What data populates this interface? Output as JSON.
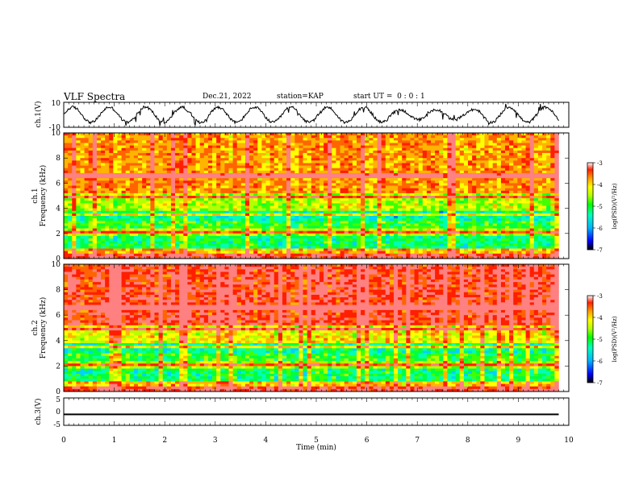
{
  "header": {
    "title": "VLF Spectra",
    "date": "Dec.21, 2022",
    "station": "station=KAP",
    "start": "start UT =  0 : 0 : 1"
  },
  "colors": {
    "spectrum_scale": [
      "#000000",
      "#0000ff",
      "#00b4ff",
      "#00ffc0",
      "#00ff00",
      "#b4ff00",
      "#ffff00",
      "#ffa000",
      "#ff2000",
      "#ffffff"
    ]
  },
  "chart_data": [
    {
      "type": "line",
      "name": "ch1-waveform",
      "ylabel": "ch.1(V)",
      "ylim": [
        -10,
        10
      ],
      "yticks": [
        "10",
        "-10"
      ],
      "xlim": [
        0,
        10
      ],
      "data_xmax": 9.8,
      "approx_shape": "quasi-periodic oscillation, period ~0.7 min, amplitude ~5 V, weakening near 7–8 min"
    },
    {
      "type": "heatmap",
      "name": "ch1-spectrogram",
      "ylabel": "ch.1\nFrequency (kHz)",
      "ylim": [
        0,
        10
      ],
      "yticks": [
        "0",
        "2",
        "4",
        "6",
        "8",
        "10"
      ],
      "xlim": [
        0,
        10
      ],
      "data_xmax": 9.8,
      "colorbar": {
        "label": "log(PSD)(V²/Hz)",
        "range": [
          -7,
          -3
        ],
        "ticks": [
          "-3",
          "-4",
          "-5",
          "-6",
          "-7"
        ]
      }
    },
    {
      "type": "heatmap",
      "name": "ch2-spectrogram",
      "ylabel": "ch.2\nFrequency (kHz)",
      "ylim": [
        0,
        10
      ],
      "yticks": [
        "0",
        "2",
        "4",
        "6",
        "8",
        "10"
      ],
      "xlim": [
        0,
        10
      ],
      "data_xmax": 9.8,
      "colorbar": {
        "label": "log(PSD)(V²/Hz)",
        "range": [
          -7,
          -3
        ],
        "ticks": [
          "-3",
          "-4",
          "-5",
          "-6",
          "-7"
        ]
      }
    },
    {
      "type": "line",
      "name": "ch3-waveform",
      "ylabel": "ch.3(V)",
      "ylim": [
        -5,
        5
      ],
      "yticks": [
        "5",
        "0",
        "-5"
      ],
      "xlim": [
        0,
        10
      ],
      "data_xmax": 9.8,
      "approx_shape": "flat band near -1 V"
    }
  ],
  "xaxis": {
    "label": "Time (min)",
    "ticks": [
      "0",
      "1",
      "2",
      "3",
      "4",
      "5",
      "6",
      "7",
      "8",
      "9",
      "10"
    ]
  }
}
